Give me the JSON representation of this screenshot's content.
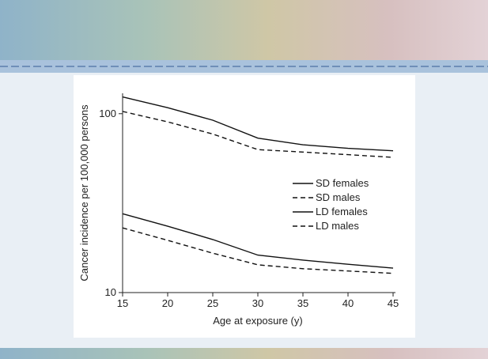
{
  "chart_data": {
    "type": "line",
    "x": [
      15,
      20,
      25,
      30,
      35,
      40,
      45
    ],
    "xlabel": "Age at exposure (y)",
    "ylabel": "Cancer incidence per 100,000 persons",
    "xlim": [
      15,
      45
    ],
    "xticks": [
      15,
      20,
      25,
      30,
      35,
      40,
      45
    ],
    "ylim": [
      10,
      130
    ],
    "yticks": [
      10,
      100
    ],
    "ylog": true,
    "legend": "right",
    "series": [
      {
        "name": "SD females",
        "color": "#111111",
        "dash": false,
        "values": [
          124,
          108,
          92,
          73,
          67,
          64,
          62
        ]
      },
      {
        "name": "SD males",
        "color": "#111111",
        "dash": true,
        "values": [
          103,
          90,
          77,
          63,
          61,
          59,
          57
        ]
      },
      {
        "name": "LD females",
        "color": "#111111",
        "dash": false,
        "values": [
          27.6,
          23.5,
          19.8,
          16.2,
          15.2,
          14.4,
          13.7
        ]
      },
      {
        "name": "LD males",
        "color": "#111111",
        "dash": true,
        "values": [
          23,
          19.6,
          16.6,
          14.3,
          13.6,
          13.2,
          12.8
        ]
      }
    ]
  }
}
